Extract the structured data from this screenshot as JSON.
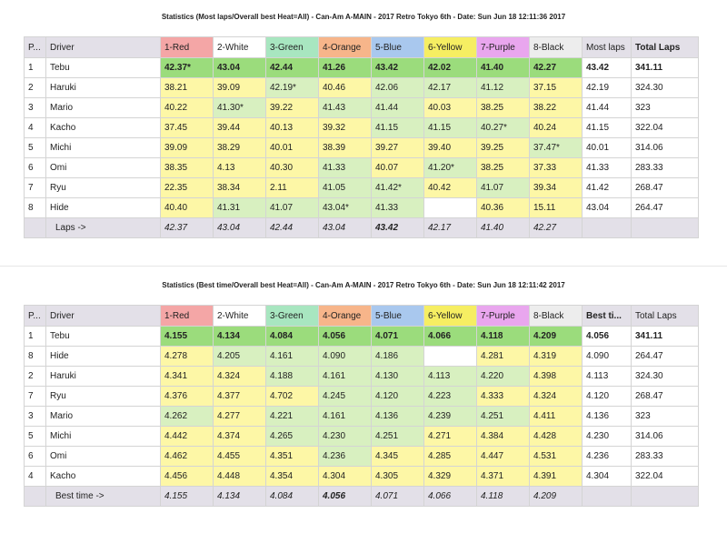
{
  "table1": {
    "title": "Statistics (Most laps/Overall best Heat=All) - Can-Am A-MAIN - 2017 Retro Tokyo 6th - Date: Sun Jun 18 12:11:36 2017",
    "headers": [
      "P...",
      "Driver",
      "1-Red",
      "2-White",
      "3-Green",
      "4-Orange",
      "5-Blue",
      "6-Yellow",
      "7-Purple",
      "8-Black",
      "Most laps",
      "Total Laps"
    ],
    "header_colors": [
      "",
      "",
      "#f4a6a6",
      "#ffffff",
      "#a8e6c0",
      "#f7b58a",
      "#a9c8ee",
      "#f6ee62",
      "#e9a6ee",
      "#ededed",
      "",
      ""
    ],
    "rows": [
      {
        "pos": "1",
        "driver": "Tebu",
        "laps": [
          "42.37*",
          "43.04",
          "42.44",
          "41.26",
          "43.42",
          "42.02",
          "41.40",
          "42.27"
        ],
        "best": "43.42",
        "total": "341.11"
      },
      {
        "pos": "2",
        "driver": "Haruki",
        "laps": [
          "38.21",
          "39.09",
          "42.19*",
          "40.46",
          "42.06",
          "42.17",
          "41.12",
          "37.15"
        ],
        "best": "42.19",
        "total": "324.30"
      },
      {
        "pos": "3",
        "driver": "Mario",
        "laps": [
          "40.22",
          "41.30*",
          "39.22",
          "41.43",
          "41.44",
          "40.03",
          "38.25",
          "38.22"
        ],
        "best": "41.44",
        "total": "323"
      },
      {
        "pos": "4",
        "driver": "Kacho",
        "laps": [
          "37.45",
          "39.44",
          "40.13",
          "39.32",
          "41.15",
          "41.15",
          "40.27*",
          "40.24"
        ],
        "best": "41.15",
        "total": "322.04"
      },
      {
        "pos": "5",
        "driver": "Michi",
        "laps": [
          "39.09",
          "38.29",
          "40.01",
          "38.39",
          "39.27",
          "39.40",
          "39.25",
          "37.47*"
        ],
        "best": "40.01",
        "total": "314.06"
      },
      {
        "pos": "6",
        "driver": "Omi",
        "laps": [
          "38.35",
          "4.13",
          "40.30",
          "41.33",
          "40.07",
          "41.20*",
          "38.25",
          "37.33"
        ],
        "best": "41.33",
        "total": "283.33"
      },
      {
        "pos": "7",
        "driver": "Ryu",
        "laps": [
          "22.35",
          "38.34",
          "2.11",
          "41.05",
          "41.42*",
          "40.42",
          "41.07",
          "39.34"
        ],
        "best": "41.42",
        "total": "268.47"
      },
      {
        "pos": "8",
        "driver": "Hide",
        "laps": [
          "40.40",
          "41.31",
          "41.07",
          "43.04*",
          "41.33",
          "",
          "40.36",
          "15.11"
        ],
        "best": "43.04",
        "total": "264.47"
      }
    ],
    "footer": {
      "label": "Laps ->",
      "values": [
        "42.37",
        "43.04",
        "42.44",
        "43.04",
        "43.42",
        "42.17",
        "41.40",
        "42.27"
      ]
    }
  },
  "table2": {
    "title": "Statistics (Best time/Overall best Heat=All) - Can-Am A-MAIN - 2017 Retro Tokyo 6th - Date: Sun Jun 18 12:11:42 2017",
    "headers": [
      "P...",
      "Driver",
      "1-Red",
      "2-White",
      "3-Green",
      "4-Orange",
      "5-Blue",
      "6-Yellow",
      "7-Purple",
      "8-Black",
      "Best ti...",
      "Total Laps"
    ],
    "header_colors": [
      "",
      "",
      "#f4a6a6",
      "#ffffff",
      "#a8e6c0",
      "#f7b58a",
      "#a9c8ee",
      "#f6ee62",
      "#e9a6ee",
      "#ededed",
      "",
      ""
    ],
    "rows": [
      {
        "pos": "1",
        "driver": "Tebu",
        "laps": [
          "4.155",
          "4.134",
          "4.084",
          "4.056",
          "4.071",
          "4.066",
          "4.118",
          "4.209"
        ],
        "best": "4.056",
        "total": "341.11"
      },
      {
        "pos": "8",
        "driver": "Hide",
        "laps": [
          "4.278",
          "4.205",
          "4.161",
          "4.090",
          "4.186",
          "",
          "4.281",
          "4.319"
        ],
        "best": "4.090",
        "total": "264.47"
      },
      {
        "pos": "2",
        "driver": "Haruki",
        "laps": [
          "4.341",
          "4.324",
          "4.188",
          "4.161",
          "4.130",
          "4.113",
          "4.220",
          "4.398"
        ],
        "best": "4.113",
        "total": "324.30"
      },
      {
        "pos": "7",
        "driver": "Ryu",
        "laps": [
          "4.376",
          "4.377",
          "4.702",
          "4.245",
          "4.120",
          "4.223",
          "4.333",
          "4.324"
        ],
        "best": "4.120",
        "total": "268.47"
      },
      {
        "pos": "3",
        "driver": "Mario",
        "laps": [
          "4.262",
          "4.277",
          "4.221",
          "4.161",
          "4.136",
          "4.239",
          "4.251",
          "4.411"
        ],
        "best": "4.136",
        "total": "323"
      },
      {
        "pos": "5",
        "driver": "Michi",
        "laps": [
          "4.442",
          "4.374",
          "4.265",
          "4.230",
          "4.251",
          "4.271",
          "4.384",
          "4.428"
        ],
        "best": "4.230",
        "total": "314.06"
      },
      {
        "pos": "6",
        "driver": "Omi",
        "laps": [
          "4.462",
          "4.455",
          "4.351",
          "4.236",
          "4.345",
          "4.285",
          "4.447",
          "4.531"
        ],
        "best": "4.236",
        "total": "283.33"
      },
      {
        "pos": "4",
        "driver": "Kacho",
        "laps": [
          "4.456",
          "4.448",
          "4.354",
          "4.304",
          "4.305",
          "4.329",
          "4.371",
          "4.391"
        ],
        "best": "4.304",
        "total": "322.04"
      }
    ],
    "footer": {
      "label": "Best time ->",
      "values": [
        "4.155",
        "4.134",
        "4.084",
        "4.056",
        "4.071",
        "4.066",
        "4.118",
        "4.209"
      ]
    }
  }
}
